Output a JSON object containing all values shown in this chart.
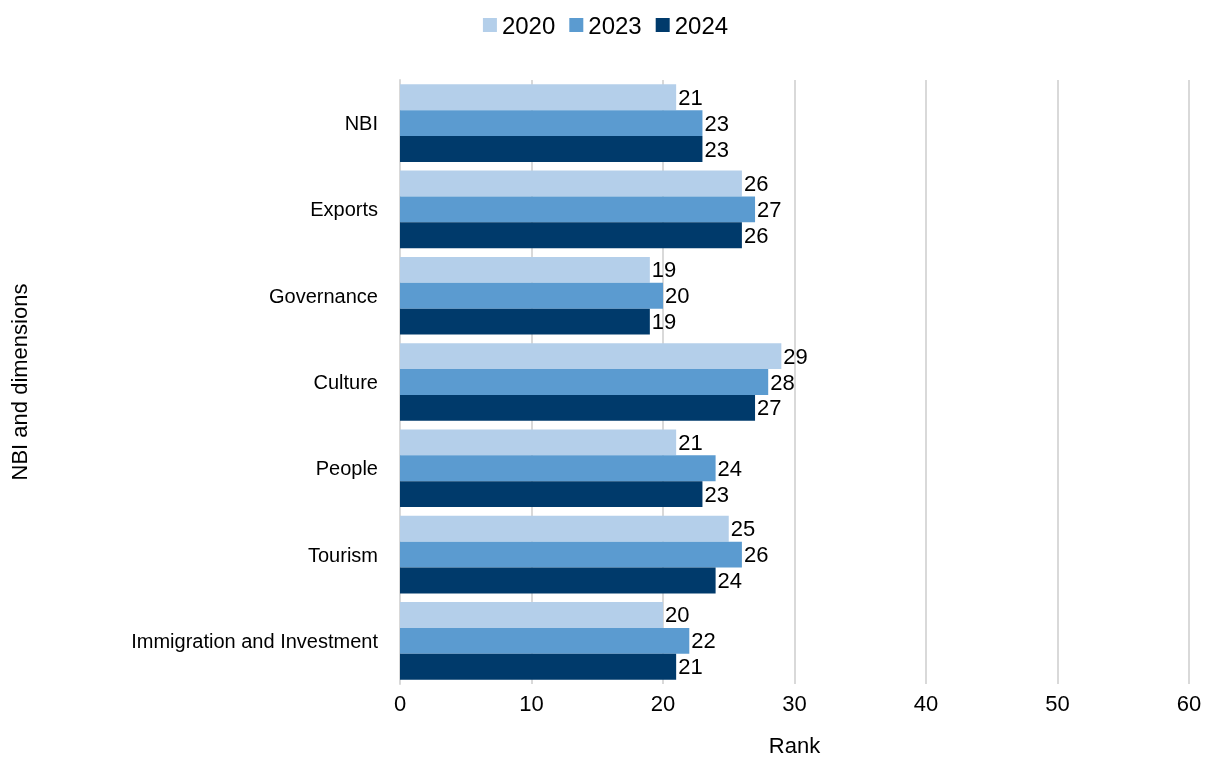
{
  "chart_data": {
    "type": "bar",
    "orientation": "horizontal",
    "xlabel": "Rank",
    "ylabel": "NBI and dimensions",
    "categories": [
      "NBI",
      "Exports",
      "Governance",
      "Culture",
      "People",
      "Tourism",
      "Immigration and Investment"
    ],
    "series": [
      {
        "name": "2020",
        "color": "#b4cfea",
        "values": [
          21,
          26,
          19,
          29,
          21,
          25,
          20
        ]
      },
      {
        "name": "2023",
        "color": "#5b9bd0",
        "values": [
          23,
          27,
          20,
          28,
          24,
          26,
          22
        ]
      },
      {
        "name": "2024",
        "color": "#003a6b",
        "values": [
          23,
          26,
          19,
          27,
          23,
          24,
          21
        ]
      }
    ],
    "xlim": [
      0,
      60
    ],
    "xticks": [
      0,
      10,
      20,
      30,
      40,
      50,
      60
    ],
    "grid": "x",
    "legend": "top",
    "data_labels": true
  }
}
